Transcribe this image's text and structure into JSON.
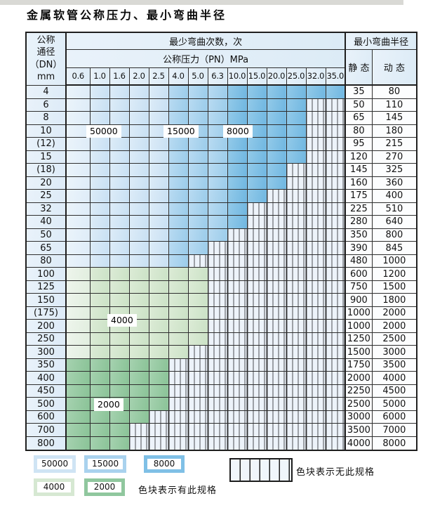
{
  "title": "金属软管公称压力、最小弯曲半径",
  "header": {
    "corner_lines": [
      "公称",
      "通径",
      "（DN）",
      "mm"
    ],
    "bend_count_header": "最少弯曲次数，次",
    "pressure_header": "公称压力（PN）MPa",
    "radius_header": "最小弯曲半径",
    "static_label": "静 态",
    "dynamic_label": "动 态"
  },
  "chart_data": {
    "type": "table",
    "title": "金属软管公称压力、最小弯曲半径",
    "pressure_columns": [
      "0.6",
      "1.0",
      "1.6",
      "2.0",
      "2.5",
      "4.0",
      "5.0",
      "6.3",
      "10.0",
      "15.0",
      "20.0",
      "25.0",
      "32.0",
      "35.0"
    ],
    "bend_cycle_zones": {
      "50000": {
        "pn_from": "0.6",
        "pn_to": "2.5"
      },
      "15000": {
        "pn_from": "4.0",
        "pn_to": "6.3"
      },
      "8000": {
        "pn_from": "10.0",
        "pn_to": "35.0"
      },
      "4000": {
        "rows": "100-300"
      },
      "2000": {
        "rows": "350-800"
      }
    },
    "overlay_labels": [
      "50000",
      "15000",
      "8000",
      "4000",
      "2000"
    ],
    "rows": [
      {
        "dn": "4",
        "static": "35",
        "dynamic": "80",
        "max_pn": "35.0",
        "family": "blue"
      },
      {
        "dn": "6",
        "static": "50",
        "dynamic": "110",
        "max_pn": "25.0",
        "family": "blue"
      },
      {
        "dn": "8",
        "static": "65",
        "dynamic": "145",
        "max_pn": "25.0",
        "family": "blue"
      },
      {
        "dn": "10",
        "static": "80",
        "dynamic": "180",
        "max_pn": "25.0",
        "family": "blue"
      },
      {
        "dn": "(12)",
        "static": "95",
        "dynamic": "215",
        "max_pn": "25.0",
        "family": "blue"
      },
      {
        "dn": "15",
        "static": "120",
        "dynamic": "270",
        "max_pn": "25.0",
        "family": "blue"
      },
      {
        "dn": "(18)",
        "static": "145",
        "dynamic": "325",
        "max_pn": "20.0",
        "family": "blue"
      },
      {
        "dn": "20",
        "static": "160",
        "dynamic": "360",
        "max_pn": "20.0",
        "family": "blue"
      },
      {
        "dn": "25",
        "static": "175",
        "dynamic": "400",
        "max_pn": "15.0",
        "family": "blue"
      },
      {
        "dn": "32",
        "static": "225",
        "dynamic": "510",
        "max_pn": "10.0",
        "family": "blue"
      },
      {
        "dn": "40",
        "static": "280",
        "dynamic": "640",
        "max_pn": "10.0",
        "family": "blue"
      },
      {
        "dn": "50",
        "static": "350",
        "dynamic": "800",
        "max_pn": "6.3",
        "family": "blue"
      },
      {
        "dn": "65",
        "static": "390",
        "dynamic": "845",
        "max_pn": "5.0",
        "family": "blue"
      },
      {
        "dn": "80",
        "static": "480",
        "dynamic": "1000",
        "max_pn": "4.0",
        "family": "blue"
      },
      {
        "dn": "100",
        "static": "600",
        "dynamic": "1200",
        "max_pn": "5.0",
        "family": "4000"
      },
      {
        "dn": "125",
        "static": "750",
        "dynamic": "1500",
        "max_pn": "5.0",
        "family": "4000"
      },
      {
        "dn": "150",
        "static": "900",
        "dynamic": "1800",
        "max_pn": "5.0",
        "family": "4000"
      },
      {
        "dn": "(175)",
        "static": "1000",
        "dynamic": "2000",
        "max_pn": "5.0",
        "family": "4000"
      },
      {
        "dn": "200",
        "static": "1000",
        "dynamic": "2000",
        "max_pn": "5.0",
        "family": "4000"
      },
      {
        "dn": "250",
        "static": "1250",
        "dynamic": "2500",
        "max_pn": "5.0",
        "family": "4000"
      },
      {
        "dn": "300",
        "static": "1500",
        "dynamic": "3000",
        "max_pn": "4.0",
        "family": "4000"
      },
      {
        "dn": "350",
        "static": "1750",
        "dynamic": "3500",
        "max_pn": "2.5",
        "family": "2000"
      },
      {
        "dn": "400",
        "static": "2000",
        "dynamic": "4000",
        "max_pn": "2.5",
        "family": "2000"
      },
      {
        "dn": "450",
        "static": "2250",
        "dynamic": "4500",
        "max_pn": "2.5",
        "family": "2000"
      },
      {
        "dn": "500",
        "static": "2500",
        "dynamic": "5000",
        "max_pn": "2.5",
        "family": "2000"
      },
      {
        "dn": "600",
        "static": "3000",
        "dynamic": "6000",
        "max_pn": "2.0",
        "family": "2000"
      },
      {
        "dn": "700",
        "static": "3500",
        "dynamic": "7000",
        "max_pn": "1.6",
        "family": "2000"
      },
      {
        "dn": "800",
        "static": "4000",
        "dynamic": "8000",
        "max_pn": "1.6",
        "family": "2000"
      }
    ]
  },
  "legend": {
    "blocks": [
      {
        "label": "50000",
        "color": "#cfe4f4"
      },
      {
        "label": "15000",
        "color": "#a9d2ee"
      },
      {
        "label": "8000",
        "color": "#7fc0e6"
      },
      {
        "label": "4000",
        "color": "#d6e8d2"
      },
      {
        "label": "2000",
        "color": "#90c79e"
      }
    ],
    "has_spec_text": "色块表示有此规格",
    "no_spec_text": "色块表示无此规格"
  },
  "colors": {
    "zone_50000": "#cfe4f4",
    "zone_15000": "#a9d2ee",
    "zone_8000": "#7fc0e6",
    "zone_4000": "#d6e8d2",
    "zone_2000": "#90c79e",
    "hatch_bg": "#edf3fa",
    "header_bg": "#e3eef8",
    "grid_line": "#2e2e2e"
  }
}
